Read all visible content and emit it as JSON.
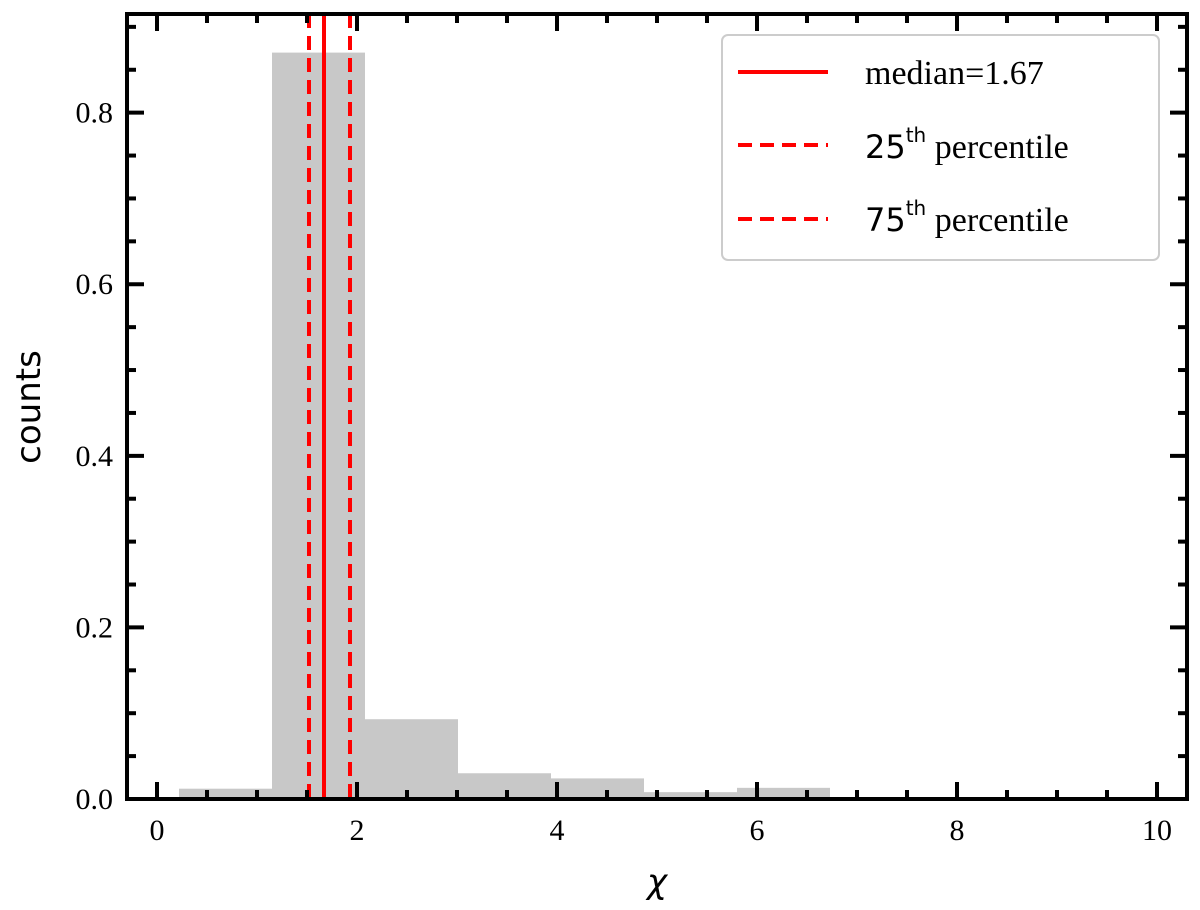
{
  "chart_data": {
    "type": "bar",
    "title": "",
    "xlabel": "χ",
    "ylabel": "counts",
    "xlim": [
      -0.3,
      10.3
    ],
    "ylim": [
      0,
      0.915
    ],
    "xticks": [
      0,
      2,
      4,
      6,
      8,
      10
    ],
    "xtick_labels": [
      "0",
      "2",
      "4",
      "6",
      "8",
      "10"
    ],
    "yticks": [
      0.0,
      0.2,
      0.4,
      0.6,
      0.8
    ],
    "ytick_labels": [
      "0.0",
      "0.2",
      "0.4",
      "0.6",
      "0.8"
    ],
    "bar_color": "#c8c8c8",
    "bins": [
      {
        "x0": 0.22,
        "x1": 1.15,
        "value": 0.012
      },
      {
        "x0": 1.15,
        "x1": 2.08,
        "value": 0.87
      },
      {
        "x0": 2.08,
        "x1": 3.01,
        "value": 0.093
      },
      {
        "x0": 3.01,
        "x1": 3.94,
        "value": 0.03
      },
      {
        "x0": 3.94,
        "x1": 4.87,
        "value": 0.024
      },
      {
        "x0": 4.87,
        "x1": 5.8,
        "value": 0.008
      },
      {
        "x0": 5.8,
        "x1": 6.73,
        "value": 0.013
      }
    ],
    "vlines": [
      {
        "x": 1.67,
        "style": "solid",
        "color": "#ff0000",
        "legend": "median=1.67"
      },
      {
        "x": 1.52,
        "style": "dashed",
        "color": "#ff0000",
        "legend_num": "25",
        "legend_sup": "th",
        "legend_rest": " percentile"
      },
      {
        "x": 1.93,
        "style": "dashed",
        "color": "#ff0000",
        "legend_num": "75",
        "legend_sup": "th",
        "legend_rest": " percentile"
      }
    ],
    "legend_position": "top-right",
    "grid": false
  }
}
